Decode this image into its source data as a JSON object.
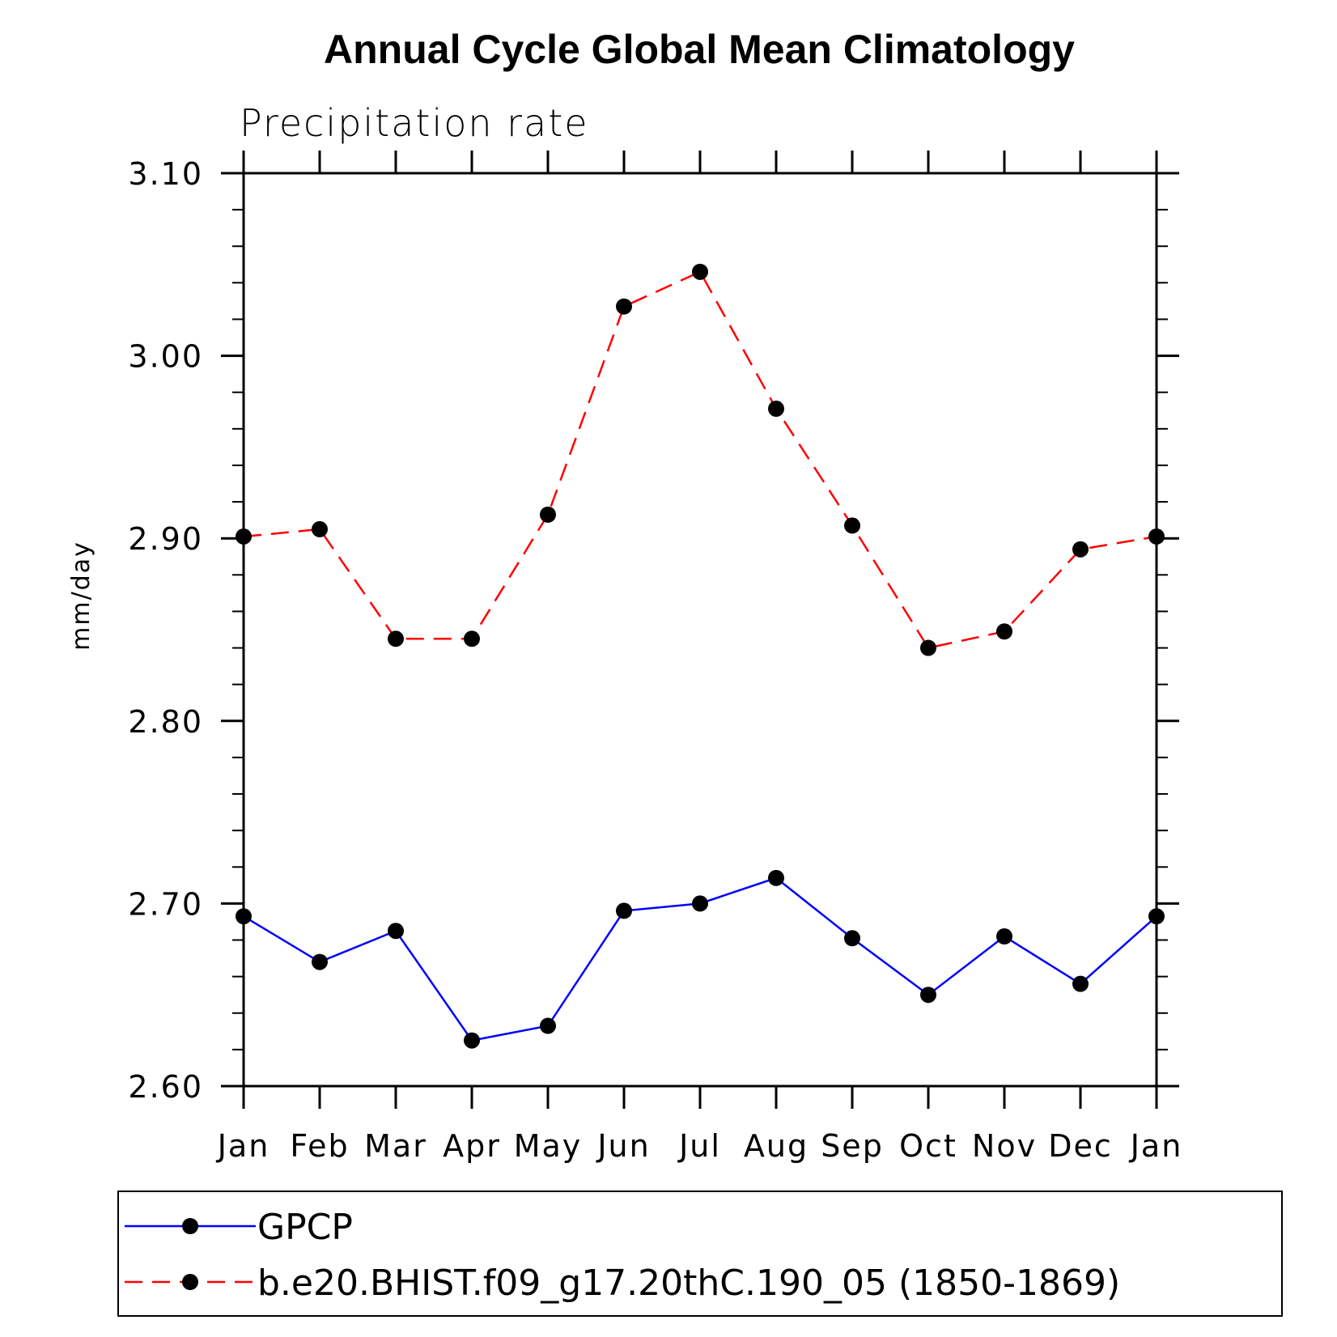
{
  "chart_data": {
    "type": "line",
    "title": "Annual Cycle Global Mean Climatology",
    "subtitle": "Precipitation rate",
    "xlabel": "",
    "ylabel": "mm/day",
    "categories": [
      "Jan",
      "Feb",
      "Mar",
      "Apr",
      "May",
      "Jun",
      "Jul",
      "Aug",
      "Sep",
      "Oct",
      "Nov",
      "Dec",
      "Jan"
    ],
    "ylim": [
      2.6,
      3.1
    ],
    "yticks": [
      "2.60",
      "2.70",
      "2.80",
      "2.90",
      "3.00",
      "3.10"
    ],
    "ytick_values": [
      2.6,
      2.7,
      2.8,
      2.9,
      3.0,
      3.1
    ],
    "minor_ytick_step": 0.02,
    "legend_position": "bottom",
    "series": [
      {
        "name": "GPCP",
        "color": "#0000ff",
        "line_style": "solid",
        "marker": "filled-circle",
        "values": [
          2.693,
          2.668,
          2.685,
          2.625,
          2.633,
          2.696,
          2.7,
          2.714,
          2.681,
          2.65,
          2.682,
          2.656,
          2.693
        ]
      },
      {
        "name": "b.e20.BHIST.f09_g17.20thC.190_05 (1850-1869)",
        "color": "#ff0000",
        "line_style": "dashed",
        "marker": "filled-circle",
        "values": [
          2.901,
          2.905,
          2.845,
          2.845,
          2.913,
          3.027,
          3.046,
          2.971,
          2.907,
          2.84,
          2.849,
          2.894,
          2.901
        ]
      }
    ]
  }
}
